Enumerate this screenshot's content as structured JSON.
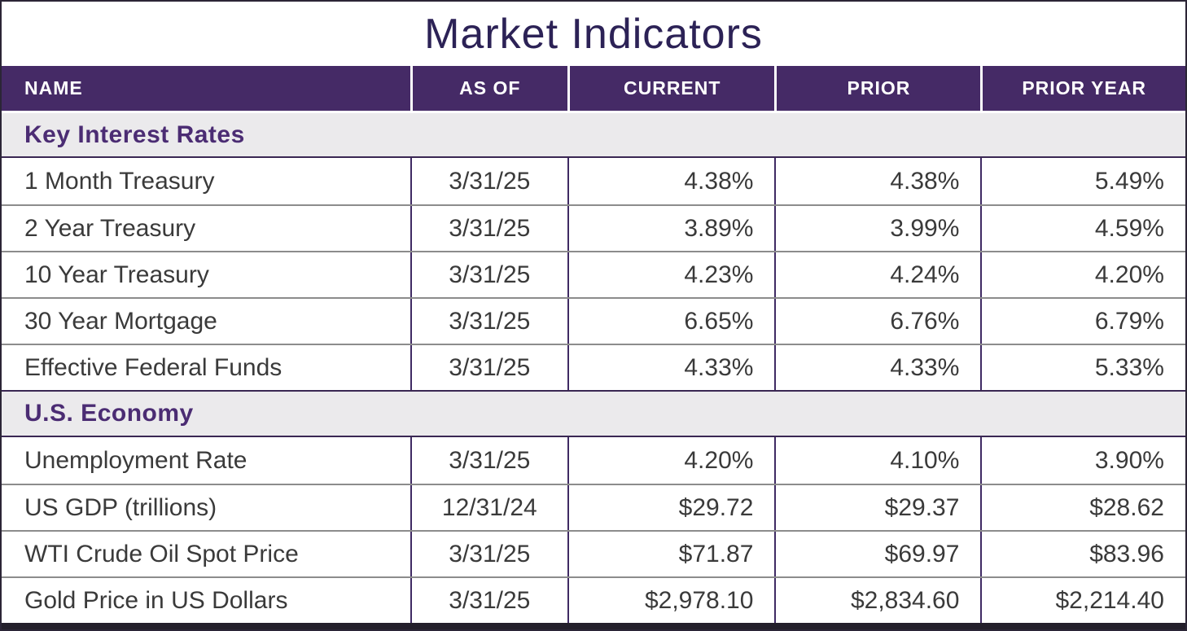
{
  "title": "Market Indicators",
  "colors": {
    "header_bg": "#452a66",
    "header_text": "#ffffff",
    "section_bg": "#ebeaec",
    "section_text": "#4b2c73",
    "column_divider": "#3f2a63",
    "row_divider": "#8c8c8c",
    "title_text": "#2c2256",
    "bottom_bar": "#231f2b"
  },
  "table": {
    "columns": [
      "NAME",
      "AS OF",
      "CURRENT",
      "PRIOR",
      "PRIOR YEAR"
    ],
    "sections": [
      {
        "label": "Key Interest Rates",
        "rows": [
          {
            "name": "1 Month Treasury",
            "as_of": "3/31/25",
            "current": "4.38%",
            "prior": "4.38%",
            "prior_year": "5.49%"
          },
          {
            "name": "2 Year Treasury",
            "as_of": "3/31/25",
            "current": "3.89%",
            "prior": "3.99%",
            "prior_year": "4.59%"
          },
          {
            "name": "10 Year Treasury",
            "as_of": "3/31/25",
            "current": "4.23%",
            "prior": "4.24%",
            "prior_year": "4.20%"
          },
          {
            "name": "30 Year Mortgage",
            "as_of": "3/31/25",
            "current": "6.65%",
            "prior": "6.76%",
            "prior_year": "6.79%"
          },
          {
            "name": "Effective Federal Funds",
            "as_of": "3/31/25",
            "current": "4.33%",
            "prior": "4.33%",
            "prior_year": "5.33%"
          }
        ]
      },
      {
        "label": "U.S. Economy",
        "rows": [
          {
            "name": "Unemployment Rate",
            "as_of": "3/31/25",
            "current": "4.20%",
            "prior": "4.10%",
            "prior_year": "3.90%"
          },
          {
            "name": "US GDP (trillions)",
            "as_of": "12/31/24",
            "current": "$29.72",
            "prior": "$29.37",
            "prior_year": "$28.62"
          },
          {
            "name": "WTI Crude Oil Spot Price",
            "as_of": "3/31/25",
            "current": "$71.87",
            "prior": "$69.97",
            "prior_year": "$83.96"
          },
          {
            "name": "Gold Price in US Dollars",
            "as_of": "3/31/25",
            "current": "$2,978.10",
            "prior": "$2,834.60",
            "prior_year": "$2,214.40"
          }
        ]
      }
    ]
  },
  "chart_data": {
    "type": "table",
    "title": "Market Indicators",
    "columns": [
      "NAME",
      "AS OF",
      "CURRENT",
      "PRIOR",
      "PRIOR YEAR"
    ],
    "groups": [
      {
        "group": "Key Interest Rates",
        "rows": [
          [
            "1 Month Treasury",
            "3/31/25",
            "4.38%",
            "4.38%",
            "5.49%"
          ],
          [
            "2 Year Treasury",
            "3/31/25",
            "3.89%",
            "3.99%",
            "4.59%"
          ],
          [
            "10 Year Treasury",
            "3/31/25",
            "4.23%",
            "4.24%",
            "4.20%"
          ],
          [
            "30 Year Mortgage",
            "3/31/25",
            "6.65%",
            "6.76%",
            "6.79%"
          ],
          [
            "Effective Federal Funds",
            "3/31/25",
            "4.33%",
            "4.33%",
            "5.33%"
          ]
        ]
      },
      {
        "group": "U.S. Economy",
        "rows": [
          [
            "Unemployment Rate",
            "3/31/25",
            "4.20%",
            "4.10%",
            "3.90%"
          ],
          [
            "US GDP (trillions)",
            "12/31/24",
            "$29.72",
            "$29.37",
            "$28.62"
          ],
          [
            "WTI Crude Oil Spot Price",
            "3/31/25",
            "$71.87",
            "$69.97",
            "$83.96"
          ],
          [
            "Gold Price in US Dollars",
            "3/31/25",
            "$2,978.10",
            "$2,834.60",
            "$2,214.40"
          ]
        ]
      }
    ]
  }
}
